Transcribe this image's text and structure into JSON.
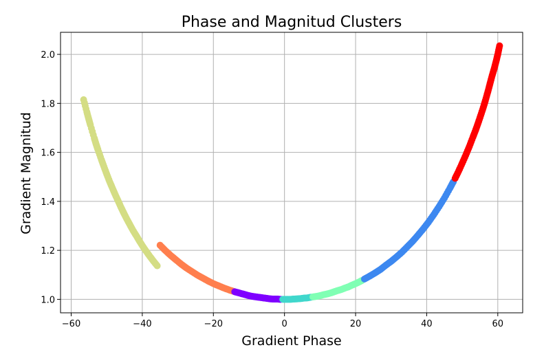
{
  "chart_data": {
    "type": "scatter",
    "title": "Phase and Magnitud Clusters",
    "xlabel": "Gradient Phase",
    "ylabel": "Gradient Magnitud",
    "xlim": [
      -63,
      67
    ],
    "ylim": [
      0.945,
      2.09
    ],
    "xticks": [
      -60,
      -40,
      -20,
      0,
      20,
      40,
      60
    ],
    "xtick_labels": [
      "−60",
      "−40",
      "−20",
      "0",
      "20",
      "40",
      "60"
    ],
    "yticks": [
      1.0,
      1.2,
      1.4,
      1.6,
      1.8,
      2.0
    ],
    "ytick_labels": [
      "1.0",
      "1.2",
      "1.4",
      "1.6",
      "1.8",
      "2.0"
    ],
    "grid": true,
    "legend": "none",
    "curve": "y = 1 / cos(x degrees)",
    "series": [
      {
        "color": "#d4dd84",
        "x": [
          -56.5,
          -55.6,
          -55.1,
          -54.6,
          -53.5,
          -53.0,
          -52.5,
          -51.5,
          -50.8,
          -50.0,
          -49.2,
          -48.4,
          -47.6,
          -46.8,
          -46.0,
          -45.2,
          -44.4,
          -43.5,
          -42.6,
          -41.7,
          -40.8,
          -39.8,
          -38.8,
          -37.8,
          -36.8,
          -35.8
        ],
        "y": [
          1.815,
          1.765,
          1.738,
          1.712,
          1.658,
          1.634,
          1.612,
          1.57,
          1.542,
          1.511,
          1.481,
          1.454,
          1.427,
          1.402,
          1.376,
          1.352,
          1.329,
          1.305,
          1.281,
          1.26,
          1.238,
          1.215,
          1.194,
          1.174,
          1.155,
          1.137
        ]
      },
      {
        "color": "#ff7f4e",
        "x": [
          -35.0,
          -33.5,
          -32.0,
          -30.5,
          -29.0,
          -27.5,
          -26.0,
          -24.5,
          -23.0,
          -21.5,
          -20.0,
          -18.5,
          -17.0,
          -15.5,
          -14.2
        ],
        "y": [
          1.221,
          1.199,
          1.179,
          1.161,
          1.143,
          1.127,
          1.113,
          1.099,
          1.087,
          1.075,
          1.064,
          1.055,
          1.046,
          1.038,
          1.032
        ]
      },
      {
        "color": "#7f00ff",
        "x": [
          -14.0,
          -13.0,
          -12.0,
          -11.0,
          -10.0,
          -9.0,
          -8.0,
          -7.0,
          -6.0,
          -5.0,
          -4.0,
          -3.0,
          -2.0,
          -1.0
        ],
        "y": [
          1.031,
          1.027,
          1.023,
          1.019,
          1.015,
          1.012,
          1.01,
          1.008,
          1.006,
          1.004,
          1.002,
          1.001,
          1.001,
          1.0
        ]
      },
      {
        "color": "#40d7cc",
        "x": [
          -0.5,
          0.5,
          1.5,
          2.5,
          3.5,
          4.5,
          5.5,
          6.5,
          7.5
        ],
        "y": [
          1.0,
          1.0,
          1.0,
          1.001,
          1.002,
          1.003,
          1.005,
          1.006,
          1.009
        ]
      },
      {
        "color": "#80ffb4",
        "x": [
          8.0,
          9.0,
          10.0,
          11.0,
          12.0,
          13.0,
          14.0,
          15.0,
          16.0,
          17.0,
          18.0,
          19.0,
          20.0,
          21.0,
          21.8
        ],
        "y": [
          1.01,
          1.012,
          1.015,
          1.019,
          1.022,
          1.026,
          1.031,
          1.036,
          1.04,
          1.046,
          1.051,
          1.058,
          1.064,
          1.071,
          1.077
        ]
      },
      {
        "color": "#3d88f0",
        "x": [
          22.5,
          24.0,
          25.5,
          27.0,
          28.5,
          30.0,
          31.5,
          33.0,
          34.5,
          36.0,
          37.5,
          39.0,
          40.5,
          42.0,
          43.5,
          45.0,
          46.5,
          47.5
        ],
        "y": [
          1.083,
          1.095,
          1.108,
          1.122,
          1.139,
          1.155,
          1.173,
          1.192,
          1.214,
          1.236,
          1.261,
          1.287,
          1.315,
          1.346,
          1.379,
          1.414,
          1.453,
          1.48
        ]
      },
      {
        "color": "#ff0000",
        "x": [
          48.0,
          49.0,
          50.0,
          51.0,
          52.0,
          53.0,
          53.8,
          54.5,
          55.2,
          55.9,
          56.5,
          57.2,
          57.8,
          58.4,
          59.0,
          59.5,
          60.0,
          60.5
        ],
        "y": [
          1.494,
          1.524,
          1.556,
          1.589,
          1.624,
          1.662,
          1.692,
          1.721,
          1.751,
          1.782,
          1.811,
          1.847,
          1.88,
          1.913,
          1.942,
          1.97,
          2.0,
          2.035
        ]
      }
    ]
  }
}
